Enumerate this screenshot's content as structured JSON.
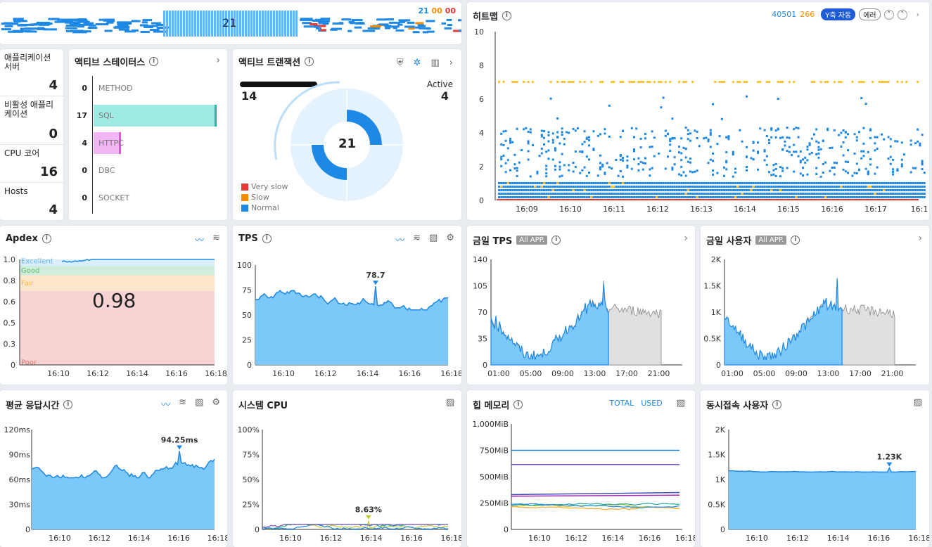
{
  "top_bar": {
    "value": "21",
    "counts": {
      "a": "21",
      "b": "00",
      "c": "00"
    }
  },
  "servers": [
    {
      "label": "애플리케이션 서버",
      "value": "4"
    },
    {
      "label": "비활성 애플리케이션",
      "value": "0"
    },
    {
      "label": "CPU 코어",
      "value": "16"
    },
    {
      "label": "Hosts",
      "value": "4"
    }
  ],
  "active_status": {
    "title": "액티브 스테이터스",
    "rows": [
      {
        "count": "0",
        "label": "METHOD",
        "frac": 0
      },
      {
        "count": "17",
        "label": "SQL",
        "frac": 1.0
      },
      {
        "count": "4",
        "label": "HTTPC",
        "frac": 0.22
      },
      {
        "count": "0",
        "label": "DBC",
        "frac": 0
      },
      {
        "count": "0",
        "label": "SOCKET",
        "frac": 0
      }
    ]
  },
  "active_tx": {
    "title": "액티브 트랜잭션",
    "left_value": "14",
    "active_label": "Active",
    "active_value": "4",
    "center": "21",
    "legend": [
      {
        "label": "Very slow",
        "color": "#e53935"
      },
      {
        "label": "Slow",
        "color": "#fb8c00"
      },
      {
        "label": "Normal",
        "color": "#1e88e5"
      }
    ]
  },
  "heatmap": {
    "title": "히트맵",
    "count_a": "40501",
    "count_b": "266",
    "toggle": "Y축 자동",
    "error_btn": "에러",
    "y_ticks": [
      "10",
      "8",
      "6",
      "4",
      "2",
      "0"
    ],
    "x_ticks": [
      "16:09",
      "16:10",
      "16:11",
      "16:12",
      "16:13",
      "16:14",
      "16:15",
      "16:16",
      "16:17",
      "16:1"
    ]
  },
  "apdex": {
    "title": "Apdex",
    "value": "0.98",
    "zones": [
      "Excellent",
      "Good",
      "Fair",
      "Poor"
    ],
    "y_ticks": [
      "1.0",
      "0.8",
      "0.6",
      "0.5",
      "0.3",
      "0"
    ],
    "x_ticks": [
      "16:10",
      "16:12",
      "16:14",
      "16:16",
      "16:18"
    ]
  },
  "tps": {
    "title": "TPS",
    "peak": "78.7",
    "y_ticks": [
      "100",
      "75",
      "50",
      "25",
      "0"
    ],
    "x_ticks": [
      "16:10",
      "16:12",
      "16:14",
      "16:16",
      "16:18"
    ]
  },
  "today_tps": {
    "title": "금일 TPS",
    "badge": "All APP.",
    "y_ticks": [
      "140",
      "105",
      "70",
      "35",
      "0"
    ],
    "x_ticks": [
      "01:00",
      "05:00",
      "09:00",
      "13:00",
      "17:00",
      "21:00"
    ]
  },
  "today_users": {
    "title": "금일 사용자",
    "badge": "All APP.",
    "y_ticks": [
      "2K",
      "1.5K",
      "1K",
      "0.5K",
      "0"
    ],
    "x_ticks": [
      "01:00",
      "05:00",
      "09:00",
      "13:00",
      "17:00",
      "21:00"
    ]
  },
  "avg_resp": {
    "title": "평균 응답시간",
    "peak": "94.25ms",
    "y_ticks": [
      "120ms",
      "90ms",
      "60ms",
      "30ms",
      "0"
    ],
    "x_ticks": [
      "16:10",
      "16:12",
      "16:14",
      "16:16",
      "16:18"
    ]
  },
  "sys_cpu": {
    "title": "시스템 CPU",
    "peak": "8.63%",
    "y_ticks": [
      "100%",
      "75%",
      "50%",
      "25%",
      "0"
    ],
    "x_ticks": [
      "16:10",
      "16:12",
      "16:14",
      "16:16",
      "16:18"
    ]
  },
  "heap": {
    "title": "힙 메모리",
    "total": "TOTAL",
    "used": "USED",
    "y_ticks": [
      "1,000MiB",
      "750MiB",
      "500MiB",
      "250MiB",
      "0"
    ],
    "x_ticks": [
      "16:10",
      "16:12",
      "16:14",
      "16:16",
      "16:18"
    ]
  },
  "concurrent": {
    "title": "동시접속 사용자",
    "peak": "1.23K",
    "y_ticks": [
      "2K",
      "1.5K",
      "1K",
      "0.5K",
      "0"
    ],
    "x_ticks": [
      "16:10",
      "16:12",
      "16:14",
      "16:16",
      "16:18"
    ]
  },
  "chart_data": [
    {
      "type": "line",
      "title": "Apdex",
      "ylim": [
        0,
        1
      ],
      "values": [
        0.98
      ]
    },
    {
      "type": "area",
      "title": "TPS",
      "ylim": [
        0,
        100
      ],
      "peak": 78.7
    },
    {
      "type": "area",
      "title": "평균 응답시간",
      "ylim": [
        0,
        120
      ],
      "peak": 94.25
    },
    {
      "type": "line",
      "title": "시스템 CPU",
      "ylim": [
        0,
        100
      ],
      "peak": 8.63
    },
    {
      "type": "area",
      "title": "동시접속 사용자",
      "ylim": [
        0,
        2000
      ],
      "peak": 1230
    }
  ]
}
